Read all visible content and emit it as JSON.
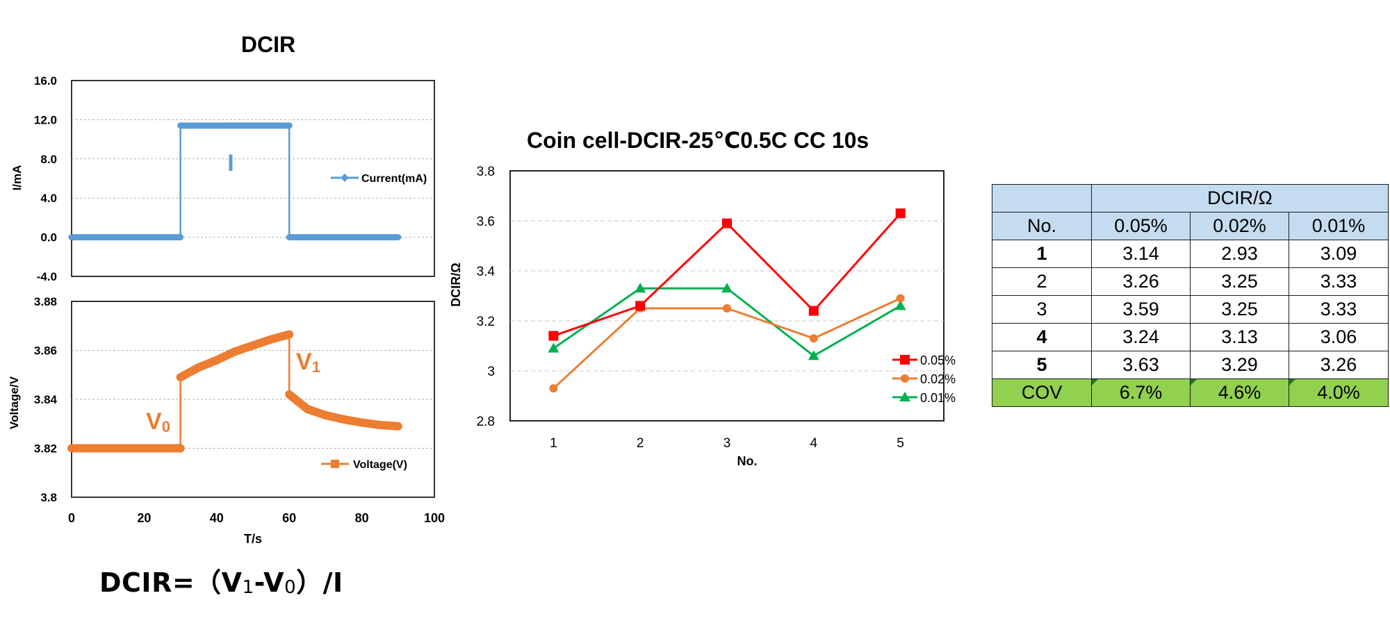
{
  "formula": {
    "prefix": "DCIR=（V",
    "sub1": "1",
    "mid": "-V",
    "sub0": "0",
    "suffix": "）/I"
  },
  "chart_data": [
    {
      "type": "line",
      "title": "DCIR",
      "xlabel": "",
      "ylabel": "I/mA",
      "xlim": [
        0,
        100
      ],
      "ylim": [
        -4.0,
        16.0
      ],
      "y_ticks": [
        "16.0",
        "12.0",
        "8.0",
        "4.0",
        "0.0",
        "-4.0"
      ],
      "grid": true,
      "series": [
        {
          "name": "Current(mA)",
          "color": "#5b9bd5",
          "x": [
            0,
            30,
            30,
            60,
            60,
            90
          ],
          "y": [
            0.0,
            0.0,
            11.4,
            11.4,
            0.0,
            0.0
          ]
        }
      ],
      "annotation": "I",
      "legend_position": "right"
    },
    {
      "type": "line",
      "title": "",
      "xlabel": "T/s",
      "ylabel": "Voltage/V",
      "xlim": [
        0,
        100
      ],
      "ylim": [
        3.8,
        3.88
      ],
      "x_ticks": [
        "0",
        "20",
        "40",
        "60",
        "80",
        "100"
      ],
      "y_ticks": [
        "3.88",
        "3.86",
        "3.84",
        "3.82",
        "3.8"
      ],
      "grid": true,
      "series": [
        {
          "name": "Voltage(V)",
          "color": "#ed7d31",
          "x": [
            0,
            30,
            30,
            35,
            40,
            45,
            50,
            55,
            60,
            60,
            65,
            70,
            75,
            80,
            85,
            90
          ],
          "y": [
            3.82,
            3.82,
            3.849,
            3.853,
            3.856,
            3.8595,
            3.862,
            3.8645,
            3.8665,
            3.842,
            3.836,
            3.8335,
            3.8318,
            3.8305,
            3.8295,
            3.829
          ]
        }
      ],
      "annotations": [
        "V",
        "0",
        "V",
        "1"
      ],
      "legend_position": "bottom-right"
    },
    {
      "type": "line",
      "title": "Coin cell-DCIR-25℃0.5C CC 10s",
      "xlabel": "No.",
      "ylabel": "DCIR/Ω",
      "categories": [
        "1",
        "2",
        "3",
        "4",
        "5"
      ],
      "ylim": [
        2.8,
        3.8
      ],
      "y_ticks": [
        "3.8",
        "3.6",
        "3.4",
        "3.2",
        "3",
        "2.8"
      ],
      "grid": true,
      "series": [
        {
          "name": "0.05%",
          "color": "#ff0000",
          "marker": "square",
          "values": [
            3.14,
            3.26,
            3.59,
            3.24,
            3.63
          ]
        },
        {
          "name": "0.02%",
          "color": "#ed7d31",
          "marker": "circle",
          "values": [
            2.93,
            3.25,
            3.25,
            3.13,
            3.29
          ]
        },
        {
          "name": "0.01%",
          "color": "#00b050",
          "marker": "triangle",
          "values": [
            3.09,
            3.33,
            3.33,
            3.06,
            3.26
          ]
        }
      ],
      "legend_position": "bottom-right"
    },
    {
      "type": "table",
      "group_header": "DCIR/Ω",
      "columns": [
        "No.",
        "0.05%",
        "0.02%",
        "0.01%"
      ],
      "rows": [
        [
          "1",
          "3.14",
          "2.93",
          "3.09"
        ],
        [
          "2",
          "3.26",
          "3.25",
          "3.33"
        ],
        [
          "3",
          "3.59",
          "3.25",
          "3.33"
        ],
        [
          "4",
          "3.24",
          "3.13",
          "3.06"
        ],
        [
          "5",
          "3.63",
          "3.29",
          "3.26"
        ]
      ],
      "summary_row": [
        "COV",
        "6.7%",
        "4.6%",
        "4.0%"
      ],
      "header_color": "#c5dcf0",
      "summary_color": "#92d050"
    }
  ]
}
